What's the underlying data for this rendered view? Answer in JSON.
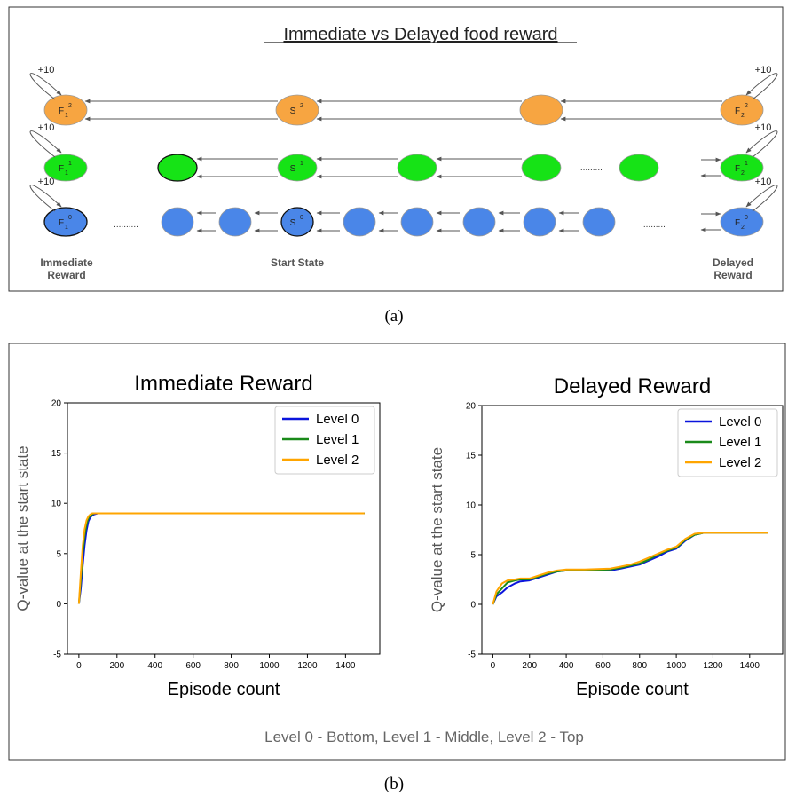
{
  "panel_a": {
    "title": "Immediate vs Delayed food reward",
    "caption": "(a)",
    "reward_label": "+10",
    "ellipsis": "..........",
    "footer": {
      "left": [
        "Immediate",
        "Reward"
      ],
      "center": "Start State",
      "right": [
        "Delayed",
        "Reward"
      ]
    },
    "levels": [
      {
        "name": "Level 2",
        "color": "#f7a541",
        "nodes": [
          {
            "base": "F",
            "sub": "1",
            "sup": "2",
            "outlined": false
          },
          {
            "base": "S",
            "sub": "",
            "sup": "2",
            "outlined": false
          },
          {
            "base": "",
            "sub": "",
            "sup": "",
            "outlined": false
          },
          {
            "base": "F",
            "sub": "2",
            "sup": "2",
            "outlined": false
          }
        ]
      },
      {
        "name": "Level 1",
        "color": "#16e316",
        "nodes": [
          {
            "base": "F",
            "sub": "1",
            "sup": "1",
            "outlined": false
          },
          {
            "base": "",
            "sub": "",
            "sup": "",
            "outlined": true
          },
          {
            "base": "S",
            "sub": "",
            "sup": "1",
            "outlined": false
          },
          {
            "base": "",
            "sub": "",
            "sup": "",
            "outlined": false
          },
          {
            "base": "",
            "sub": "",
            "sup": "",
            "outlined": false
          },
          {
            "base": "",
            "sub": "",
            "sup": "",
            "outlined": false
          },
          {
            "base": "F",
            "sub": "2",
            "sup": "1",
            "outlined": false
          }
        ]
      },
      {
        "name": "Level 0",
        "color": "#4a86e8",
        "nodes": [
          {
            "base": "F",
            "sub": "1",
            "sup": "0",
            "outlined": true
          },
          {
            "base": "",
            "sub": "",
            "sup": "",
            "outlined": false
          },
          {
            "base": "",
            "sub": "",
            "sup": "",
            "outlined": false
          },
          {
            "base": "S",
            "sub": "",
            "sup": "0",
            "outlined": true
          },
          {
            "base": "",
            "sub": "",
            "sup": "",
            "outlined": false
          },
          {
            "base": "",
            "sub": "",
            "sup": "",
            "outlined": false
          },
          {
            "base": "",
            "sub": "",
            "sup": "",
            "outlined": false
          },
          {
            "base": "",
            "sub": "",
            "sup": "",
            "outlined": false
          },
          {
            "base": "",
            "sub": "",
            "sup": "",
            "outlined": false
          },
          {
            "base": "F",
            "sub": "2",
            "sup": "0",
            "outlined": false
          }
        ]
      }
    ]
  },
  "panel_b": {
    "caption": "(b)",
    "footer": "Level 0 - Bottom, Level 1 - Middle, Level 2 - Top"
  },
  "series_colors": {
    "Level 0": "#0a14dc",
    "Level 1": "#1a8a1a",
    "Level 2": "#ffa500"
  },
  "chart_data": [
    {
      "type": "line",
      "title": "Immediate Reward",
      "xlabel": "Episode count",
      "ylabel": "Q-value at the start state",
      "xlim": [
        -60,
        1580
      ],
      "ylim": [
        -5,
        20
      ],
      "xticks": [
        0,
        200,
        400,
        600,
        800,
        1000,
        1200,
        1400
      ],
      "yticks": [
        -5,
        0,
        5,
        10,
        15,
        20
      ],
      "legend": "top-right",
      "grid": false,
      "series": [
        {
          "name": "Level 0",
          "x": [
            0,
            10,
            20,
            30,
            40,
            50,
            60,
            70,
            80,
            100,
            150,
            200,
            400,
            800,
            1200,
            1500
          ],
          "y": [
            0,
            1.5,
            3.8,
            5.8,
            7.3,
            8.2,
            8.6,
            8.8,
            8.9,
            9.0,
            9.0,
            9.0,
            9.0,
            9.0,
            9.0,
            9.0
          ]
        },
        {
          "name": "Level 1",
          "x": [
            0,
            10,
            20,
            30,
            40,
            50,
            60,
            70,
            80,
            100,
            150,
            200,
            400,
            800,
            1200,
            1500
          ],
          "y": [
            0,
            2.3,
            5.0,
            6.8,
            7.9,
            8.5,
            8.8,
            8.9,
            9.0,
            9.0,
            9.0,
            9.0,
            9.0,
            9.0,
            9.0,
            9.0
          ]
        },
        {
          "name": "Level 2",
          "x": [
            0,
            10,
            20,
            30,
            40,
            50,
            60,
            70,
            80,
            100,
            150,
            200,
            400,
            800,
            1200,
            1500
          ],
          "y": [
            0,
            3.0,
            5.8,
            7.4,
            8.3,
            8.7,
            8.9,
            9.0,
            9.0,
            9.0,
            9.0,
            9.0,
            9.0,
            9.0,
            9.0,
            9.0
          ]
        }
      ]
    },
    {
      "type": "line",
      "title": "Delayed Reward",
      "xlabel": "Episode count",
      "ylabel": "Q-value  at the start state",
      "xlim": [
        -60,
        1580
      ],
      "ylim": [
        -5,
        20
      ],
      "xticks": [
        0,
        200,
        400,
        600,
        800,
        1000,
        1200,
        1400
      ],
      "yticks": [
        -5,
        0,
        5,
        10,
        15,
        20
      ],
      "legend": "top-right",
      "grid": false,
      "series": [
        {
          "name": "Level 0",
          "x": [
            0,
            20,
            50,
            80,
            120,
            150,
            200,
            250,
            300,
            350,
            400,
            500,
            640,
            700,
            750,
            800,
            850,
            900,
            950,
            1000,
            1050,
            1100,
            1150,
            1200,
            1300,
            1400,
            1500
          ],
          "y": [
            0,
            0.8,
            1.2,
            1.7,
            2.1,
            2.3,
            2.4,
            2.7,
            3.0,
            3.3,
            3.4,
            3.4,
            3.4,
            3.6,
            3.8,
            4.0,
            4.4,
            4.8,
            5.3,
            5.6,
            6.4,
            7.0,
            7.2,
            7.2,
            7.2,
            7.2,
            7.2
          ]
        },
        {
          "name": "Level 1",
          "x": [
            0,
            20,
            50,
            80,
            120,
            150,
            200,
            250,
            300,
            350,
            400,
            500,
            640,
            700,
            750,
            800,
            850,
            900,
            950,
            1000,
            1050,
            1100,
            1150,
            1200,
            1300,
            1400,
            1500
          ],
          "y": [
            0,
            1.0,
            1.6,
            2.2,
            2.4,
            2.5,
            2.5,
            2.8,
            3.1,
            3.3,
            3.4,
            3.4,
            3.5,
            3.7,
            3.9,
            4.1,
            4.5,
            5.0,
            5.4,
            5.7,
            6.5,
            7.0,
            7.2,
            7.2,
            7.2,
            7.2,
            7.2
          ]
        },
        {
          "name": "Level 2",
          "x": [
            0,
            20,
            50,
            80,
            120,
            150,
            200,
            250,
            300,
            350,
            400,
            500,
            640,
            700,
            750,
            800,
            850,
            900,
            950,
            1000,
            1050,
            1100,
            1150,
            1200,
            1300,
            1400,
            1500
          ],
          "y": [
            0,
            1.3,
            2.1,
            2.4,
            2.5,
            2.6,
            2.6,
            2.9,
            3.2,
            3.4,
            3.5,
            3.5,
            3.6,
            3.8,
            4.0,
            4.3,
            4.7,
            5.1,
            5.5,
            5.8,
            6.6,
            7.1,
            7.2,
            7.2,
            7.2,
            7.2,
            7.2
          ]
        }
      ]
    }
  ]
}
